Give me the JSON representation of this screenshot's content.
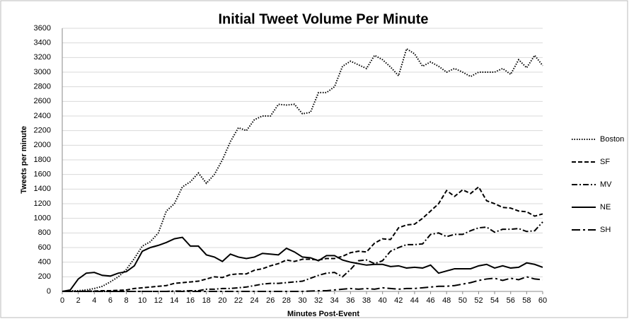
{
  "chart_data": {
    "type": "line",
    "title": "Initial Tweet Volume Per Minute",
    "x_label": "Minutes Post-Event",
    "y_label": "Tweets per minute",
    "x": [
      0,
      1,
      2,
      3,
      4,
      5,
      6,
      7,
      8,
      9,
      10,
      11,
      12,
      13,
      14,
      15,
      16,
      17,
      18,
      19,
      20,
      21,
      22,
      23,
      24,
      25,
      26,
      27,
      28,
      29,
      30,
      31,
      32,
      33,
      34,
      35,
      36,
      37,
      38,
      39,
      40,
      41,
      42,
      43,
      44,
      45,
      46,
      47,
      48,
      49,
      50,
      51,
      52,
      53,
      54,
      55,
      56,
      57,
      58,
      59,
      60
    ],
    "xlim": [
      0,
      60
    ],
    "xticks": [
      0,
      2,
      4,
      6,
      8,
      10,
      12,
      14,
      16,
      18,
      20,
      22,
      24,
      26,
      28,
      30,
      32,
      34,
      36,
      38,
      40,
      42,
      44,
      46,
      48,
      50,
      52,
      54,
      56,
      58,
      60
    ],
    "ylim": [
      0,
      3600
    ],
    "yticks": [
      0,
      200,
      400,
      600,
      800,
      1000,
      1200,
      1400,
      1600,
      1800,
      2000,
      2200,
      2400,
      2600,
      2800,
      3000,
      3200,
      3400,
      3600
    ],
    "grid": true,
    "legend": "right",
    "series": [
      {
        "name": "Boston",
        "color": "#000000",
        "dash": "dotted",
        "values": [
          0,
          10,
          10,
          20,
          40,
          70,
          130,
          200,
          300,
          450,
          620,
          680,
          800,
          1100,
          1200,
          1430,
          1500,
          1620,
          1480,
          1600,
          1800,
          2050,
          2240,
          2200,
          2350,
          2400,
          2400,
          2560,
          2550,
          2560,
          2430,
          2450,
          2720,
          2720,
          2800,
          3080,
          3150,
          3100,
          3050,
          3230,
          3170,
          3070,
          2950,
          3320,
          3250,
          3080,
          3140,
          3080,
          3000,
          3050,
          3000,
          2940,
          3000,
          3000,
          3000,
          3050,
          2970,
          3170,
          3060,
          3230,
          3090
        ]
      },
      {
        "name": "SF",
        "color": "#000000",
        "dash": "dashed",
        "values": [
          0,
          0,
          0,
          5,
          5,
          10,
          10,
          15,
          20,
          40,
          50,
          60,
          70,
          80,
          110,
          120,
          130,
          140,
          170,
          200,
          190,
          230,
          240,
          240,
          290,
          310,
          350,
          380,
          430,
          410,
          440,
          440,
          430,
          450,
          450,
          480,
          530,
          550,
          540,
          660,
          720,
          710,
          870,
          910,
          920,
          1000,
          1100,
          1200,
          1380,
          1300,
          1390,
          1340,
          1430,
          1240,
          1200,
          1150,
          1140,
          1100,
          1090,
          1030,
          1060
        ]
      },
      {
        "name": "MV",
        "color": "#000000",
        "dash": "dashdot",
        "values": [
          0,
          0,
          0,
          0,
          0,
          0,
          0,
          0,
          0,
          0,
          0,
          0,
          0,
          0,
          5,
          5,
          10,
          10,
          30,
          30,
          40,
          40,
          50,
          60,
          80,
          100,
          110,
          110,
          120,
          130,
          140,
          180,
          220,
          250,
          260,
          200,
          300,
          420,
          430,
          380,
          420,
          550,
          600,
          640,
          640,
          650,
          780,
          800,
          750,
          780,
          780,
          830,
          870,
          880,
          810,
          850,
          850,
          860,
          820,
          830,
          950
        ]
      },
      {
        "name": "NE",
        "color": "#000000",
        "dash": "solid",
        "values": [
          0,
          20,
          170,
          250,
          260,
          220,
          210,
          250,
          270,
          350,
          550,
          600,
          630,
          670,
          720,
          740,
          620,
          620,
          500,
          470,
          410,
          510,
          470,
          450,
          470,
          520,
          510,
          500,
          590,
          540,
          470,
          460,
          420,
          490,
          490,
          430,
          400,
          380,
          360,
          370,
          370,
          340,
          350,
          320,
          330,
          320,
          360,
          250,
          280,
          310,
          310,
          310,
          350,
          370,
          320,
          350,
          320,
          330,
          390,
          370,
          330
        ]
      },
      {
        "name": "SH",
        "color": "#000000",
        "dash": "longdashdot",
        "values": [
          0,
          0,
          0,
          0,
          0,
          0,
          0,
          0,
          0,
          0,
          0,
          0,
          0,
          0,
          0,
          0,
          0,
          0,
          0,
          0,
          0,
          0,
          0,
          0,
          0,
          0,
          0,
          0,
          0,
          0,
          0,
          5,
          10,
          10,
          20,
          30,
          40,
          30,
          40,
          30,
          50,
          40,
          30,
          40,
          40,
          50,
          60,
          70,
          70,
          80,
          100,
          120,
          150,
          170,
          180,
          150,
          180,
          160,
          200,
          170,
          160
        ]
      }
    ]
  }
}
